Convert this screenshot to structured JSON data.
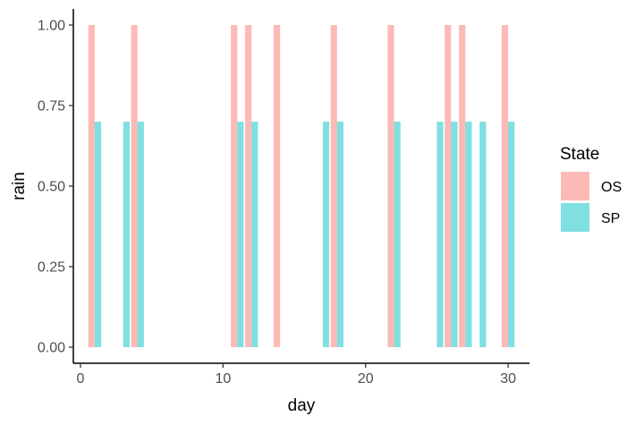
{
  "chart_data": {
    "type": "bar",
    "xlabel": "day",
    "ylabel": "rain",
    "xlim": [
      -0.5,
      31.5
    ],
    "ylim": [
      -0.05,
      1.05
    ],
    "x_ticks": [
      0,
      10,
      20,
      30
    ],
    "y_ticks": [
      0,
      0.25,
      0.5,
      0.75,
      1
    ],
    "x_tick_labels": [
      "0",
      "10",
      "20",
      "30"
    ],
    "y_tick_labels": [
      "0.00",
      "0.25",
      "0.50",
      "0.75",
      "1.00"
    ],
    "grid": false,
    "legend": {
      "title": "State",
      "position": "right",
      "entries": [
        "OS",
        "SP"
      ]
    },
    "series": [
      {
        "name": "OS",
        "color": "#F8766D",
        "opacity": 0.5,
        "x": [
          1,
          4,
          11,
          12,
          14,
          18,
          22,
          26,
          27,
          30
        ],
        "values": [
          1,
          1,
          1,
          1,
          1,
          1,
          1,
          1,
          1,
          1
        ]
      },
      {
        "name": "SP",
        "color": "#00BFC4",
        "opacity": 0.5,
        "x": [
          1,
          3,
          4,
          11,
          12,
          17,
          18,
          22,
          25,
          26,
          27,
          28,
          30
        ],
        "values": [
          0.7,
          0.7,
          0.7,
          0.7,
          0.7,
          0.7,
          0.7,
          0.7,
          0.7,
          0.7,
          0.7,
          0.7,
          0.7
        ]
      }
    ]
  }
}
